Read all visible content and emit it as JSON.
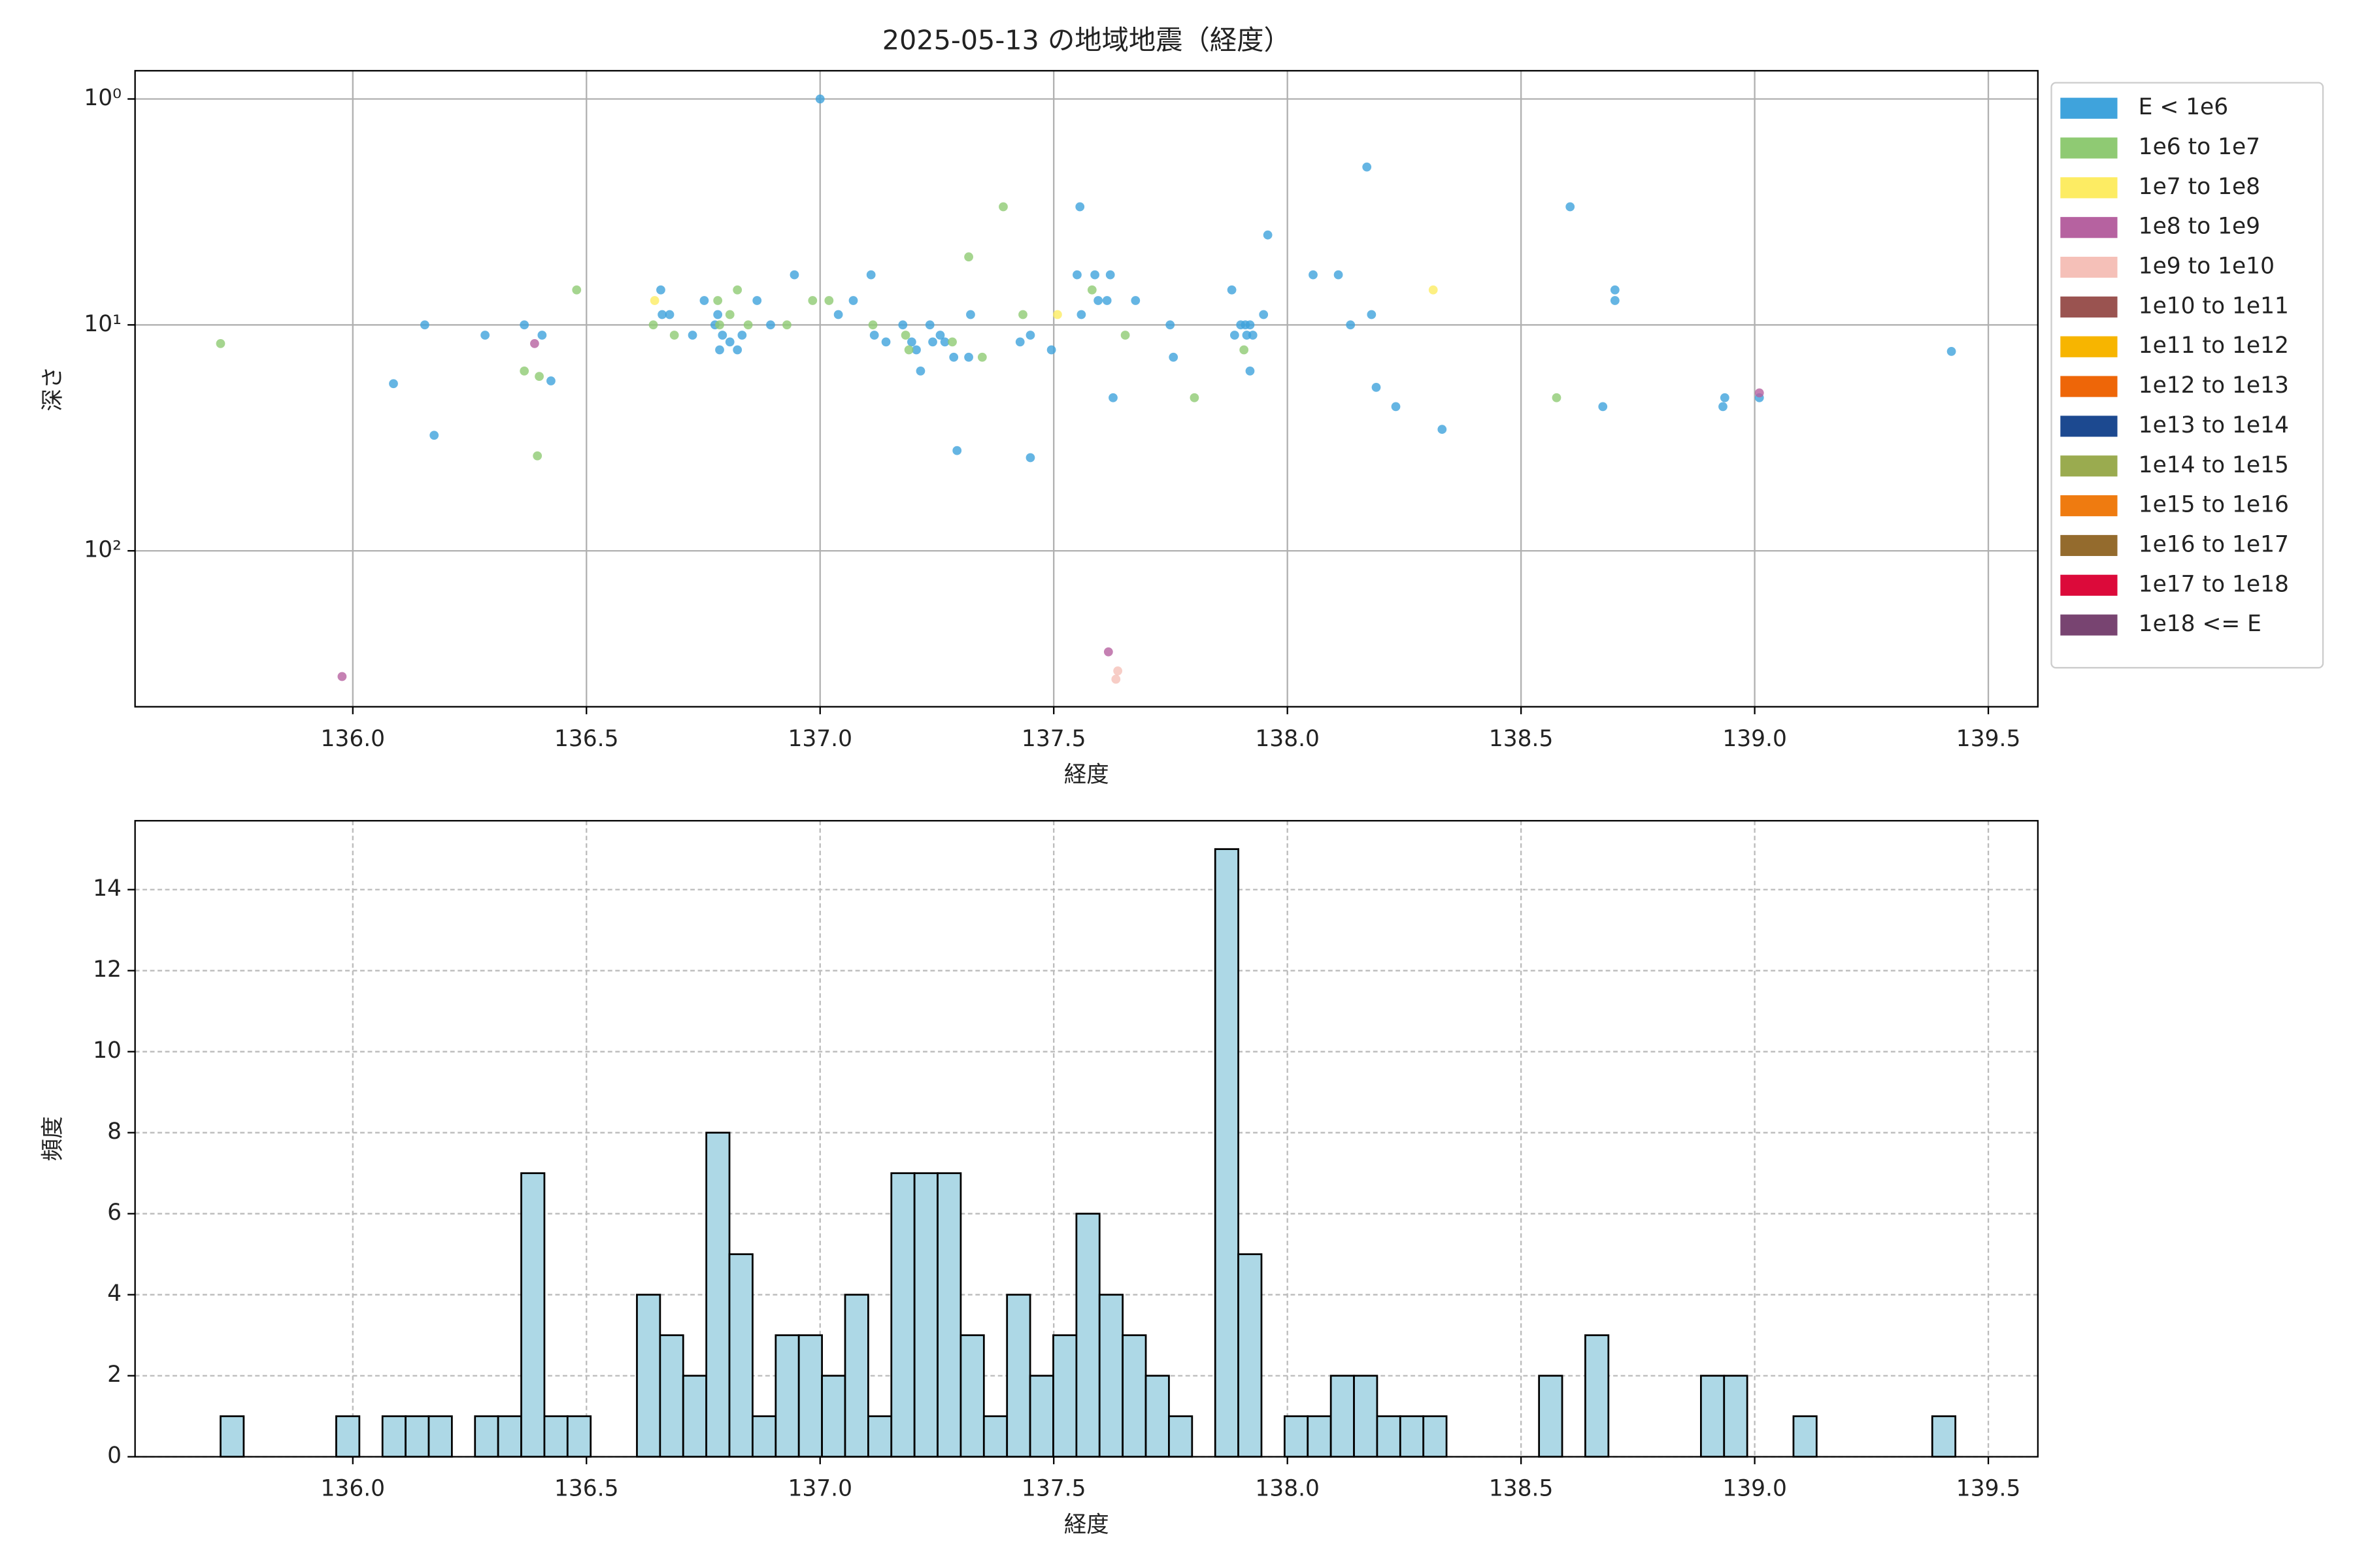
{
  "chart_data": [
    {
      "type": "scatter",
      "title": "2025-05-13 の地域地震（経度）",
      "xlabel": "経度",
      "ylabel": "深さ",
      "xlim": [
        135.534,
        139.606
      ],
      "xticks": [
        {
          "value": 136,
          "label": "136.0"
        },
        {
          "value": 136.5,
          "label": "136.5"
        },
        {
          "value": 137,
          "label": "137.0"
        },
        {
          "value": 137.5,
          "label": "137.5"
        },
        {
          "value": 138,
          "label": "138.0"
        },
        {
          "value": 138.5,
          "label": "138.5"
        },
        {
          "value": 139,
          "label": "139.0"
        },
        {
          "value": 139.5,
          "label": "139.5"
        }
      ],
      "ylim": [
        490,
        0.75
      ],
      "ylog": true,
      "yticks": [
        {
          "value": 1,
          "label": "10⁰"
        },
        {
          "value": 10,
          "label": "10¹"
        },
        {
          "value": 100,
          "label": "10²"
        }
      ],
      "grid": true,
      "legend": "right",
      "series": [
        {
          "name": "E < 1e6",
          "color": "#3fa3dc",
          "x": [
            137.0,
            136.154,
            136.087,
            136.174,
            136.283,
            136.367,
            136.405,
            136.424,
            136.659,
            136.662,
            136.678,
            136.727,
            136.752,
            136.775,
            136.781,
            136.785,
            136.791,
            136.807,
            136.823,
            136.833,
            136.865,
            136.894,
            136.945,
            137.039,
            137.071,
            137.109,
            137.116,
            137.141,
            137.177,
            137.196,
            137.206,
            137.215,
            137.235,
            137.241,
            137.257,
            137.267,
            137.286,
            137.293,
            137.318,
            137.322,
            137.428,
            137.45,
            137.45,
            137.495,
            137.55,
            137.556,
            137.559,
            137.588,
            137.595,
            137.614,
            137.621,
            137.627,
            137.675,
            137.749,
            137.756,
            137.881,
            137.887,
            137.9,
            137.91,
            137.913,
            137.92,
            137.92,
            137.926,
            137.949,
            137.958,
            138.055,
            138.109,
            138.135,
            138.17,
            138.18,
            138.19,
            138.232,
            138.331,
            138.605,
            138.675,
            138.701,
            138.701,
            138.932,
            138.936,
            139.01,
            139.421
          ],
          "y": [
            1.0,
            10,
            18.2,
            30.8,
            11.1,
            10,
            11.1,
            17.7,
            7.0,
            9.0,
            9.0,
            11.1,
            7.8,
            10,
            9.0,
            12.9,
            11.1,
            11.9,
            12.9,
            11.1,
            7.8,
            10,
            6.0,
            9.0,
            7.8,
            6.0,
            11.1,
            11.9,
            10,
            11.9,
            12.9,
            16.0,
            10,
            11.9,
            11.1,
            11.9,
            13.9,
            36,
            13.9,
            9.0,
            11.9,
            11.1,
            38.7,
            12.9,
            6.0,
            3.0,
            9.0,
            6.0,
            7.8,
            7.8,
            6.0,
            21.0,
            7.8,
            10,
            13.9,
            7.0,
            11.1,
            10,
            10,
            11.1,
            10,
            16.0,
            11.1,
            9.0,
            4.0,
            6.0,
            6.0,
            10,
            2.0,
            9.0,
            18.9,
            23.0,
            29.0,
            3.0,
            23.0,
            7.0,
            7.8,
            23.0,
            21.0,
            21.0,
            13.1
          ]
        },
        {
          "name": "1e6 to 1e7",
          "color": "#8fca73",
          "x": [
            135.717,
            136.367,
            136.399,
            136.395,
            136.479,
            136.643,
            136.688,
            136.781,
            136.785,
            136.807,
            136.823,
            136.846,
            136.929,
            136.984,
            137.019,
            137.113,
            137.183,
            137.19,
            137.283,
            137.318,
            137.347,
            137.392,
            137.434,
            137.582,
            137.653,
            137.801,
            137.907,
            138.576
          ],
          "y": [
            12.1,
            16.0,
            16.9,
            38.0,
            7.0,
            10,
            11.1,
            7.8,
            10,
            9.0,
            7.0,
            10,
            10,
            7.8,
            7.8,
            10,
            11.1,
            12.9,
            11.9,
            5.0,
            13.9,
            3.0,
            9.0,
            7.0,
            11.1,
            21.0,
            12.9,
            21.0
          ]
        },
        {
          "name": "1e7 to 1e8",
          "color": "#fdec63",
          "x": [
            136.646,
            137.508,
            138.312
          ],
          "y": [
            7.8,
            9.0,
            7.0
          ]
        },
        {
          "name": "1e8 to 1e9",
          "color": "#b662a0",
          "x": [
            136.389,
            135.977,
            137.617,
            139.01
          ],
          "y": [
            12.1,
            360,
            280,
            20.0
          ]
        },
        {
          "name": "1e9 to 1e10",
          "color": "#f5c0b8",
          "x": [
            137.637,
            137.633
          ],
          "y": [
            340,
            370
          ]
        },
        {
          "name": "1e10 to 1e11",
          "color": "#9a5350",
          "x": [],
          "y": []
        },
        {
          "name": "1e11 to 1e12",
          "color": "#f7b500",
          "x": [],
          "y": []
        },
        {
          "name": "1e12 to 1e13",
          "color": "#ee6608",
          "x": [],
          "y": []
        },
        {
          "name": "1e13 to 1e14",
          "color": "#1c4990",
          "x": [],
          "y": []
        },
        {
          "name": "1e14 to 1e15",
          "color": "#9aab4f",
          "x": [],
          "y": []
        },
        {
          "name": "1e15 to 1e16",
          "color": "#ef7b10",
          "x": [],
          "y": []
        },
        {
          "name": "1e16 to 1e17",
          "color": "#946b2d",
          "x": [],
          "y": []
        },
        {
          "name": "1e17 to 1e18",
          "color": "#dc0a3a",
          "x": [],
          "y": []
        },
        {
          "name": "1e18 <= E",
          "color": "#784471",
          "x": [],
          "y": []
        }
      ]
    },
    {
      "type": "histogram",
      "xlabel": "経度",
      "ylabel": "頻度",
      "color": "#add8e6",
      "edgecolor": "#000000",
      "xlim": [
        135.534,
        139.606
      ],
      "xticks": [
        {
          "value": 136,
          "label": "136.0"
        },
        {
          "value": 136.5,
          "label": "136.5"
        },
        {
          "value": 137,
          "label": "137.0"
        },
        {
          "value": 137.5,
          "label": "137.5"
        },
        {
          "value": 138,
          "label": "138.0"
        },
        {
          "value": 138.5,
          "label": "138.5"
        },
        {
          "value": 139,
          "label": "139.0"
        },
        {
          "value": 139.5,
          "label": "139.5"
        }
      ],
      "ylim": [
        0,
        15.7
      ],
      "yticks": [
        0,
        2,
        4,
        6,
        8,
        10,
        12,
        14
      ],
      "grid": true,
      "bins": [
        135.717,
        135.7665,
        135.816,
        135.8655,
        135.915,
        135.9645,
        136.014,
        136.0635,
        136.113,
        136.1625,
        136.212,
        136.2615,
        136.311,
        136.3605,
        136.41,
        136.4595,
        136.509,
        136.5585,
        136.608,
        136.6575,
        136.707,
        136.7565,
        136.806,
        136.8555,
        136.905,
        136.9545,
        137.004,
        137.0535,
        137.103,
        137.1525,
        137.202,
        137.2515,
        137.301,
        137.3505,
        137.4,
        137.4495,
        137.499,
        137.5485,
        137.598,
        137.6475,
        137.697,
        137.7465,
        137.796,
        137.8455,
        137.895,
        137.9445,
        137.994,
        138.0435,
        138.093,
        138.1425,
        138.192,
        138.2415,
        138.291,
        138.3405,
        138.39,
        138.4395,
        138.489,
        138.5385,
        138.588,
        138.6375,
        138.687,
        138.7365,
        138.786,
        138.8355,
        138.885,
        138.9345,
        138.984,
        139.0335,
        139.083,
        139.1325,
        139.182,
        139.2315,
        139.281,
        139.3305,
        139.38,
        139.4295
      ],
      "values": [
        1,
        0,
        0,
        0,
        0,
        1,
        0,
        1,
        1,
        1,
        0,
        1,
        1,
        7,
        1,
        1,
        0,
        0,
        4,
        3,
        2,
        8,
        5,
        1,
        3,
        3,
        2,
        4,
        1,
        7,
        7,
        7,
        3,
        1,
        4,
        2,
        3,
        6,
        4,
        3,
        2,
        1,
        0,
        15,
        5,
        0,
        1,
        1,
        2,
        2,
        1,
        1,
        1,
        0,
        0,
        0,
        0,
        2,
        0,
        3,
        0,
        0,
        0,
        0,
        2,
        2,
        0,
        0,
        1,
        0,
        0,
        0,
        0,
        0,
        1
      ]
    }
  ]
}
